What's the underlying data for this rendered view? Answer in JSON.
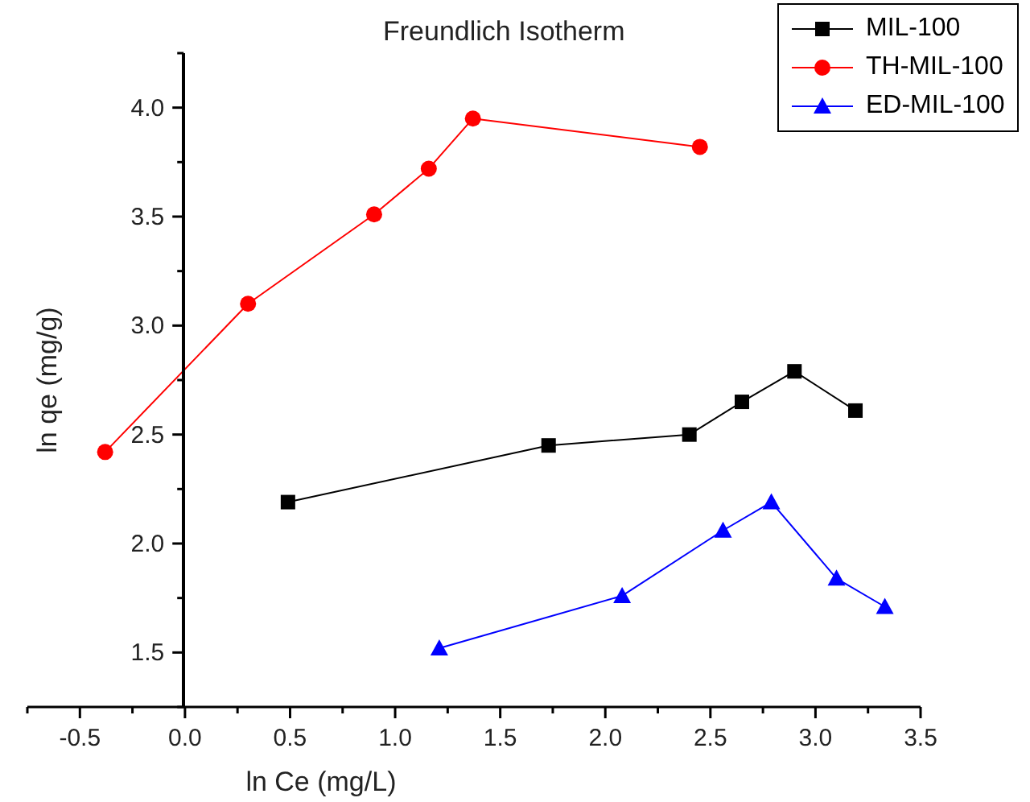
{
  "chart_data": {
    "type": "line",
    "title": "Freundlich Isotherm",
    "xlabel": "ln Ce (mg/L)",
    "ylabel": "ln qe (mg/g)",
    "xlim": [
      -0.75,
      3.5
    ],
    "ylim": [
      1.25,
      4.25
    ],
    "xticks": [
      {
        "value": -0.75,
        "label": null
      },
      {
        "value": -0.5,
        "label": "-0.5"
      },
      {
        "value": -0.25,
        "label": null
      },
      {
        "value": 0,
        "label": "0.0"
      },
      {
        "value": 0.25,
        "label": null
      },
      {
        "value": 0.5,
        "label": "0.5"
      },
      {
        "value": 0.75,
        "label": null
      },
      {
        "value": 1,
        "label": "1.0"
      },
      {
        "value": 1.25,
        "label": null
      },
      {
        "value": 1.5,
        "label": "1.5"
      },
      {
        "value": 1.75,
        "label": null
      },
      {
        "value": 2,
        "label": "2.0"
      },
      {
        "value": 2.25,
        "label": null
      },
      {
        "value": 2.5,
        "label": "2.5"
      },
      {
        "value": 2.75,
        "label": null
      },
      {
        "value": 3,
        "label": "3.0"
      },
      {
        "value": 3.25,
        "label": null
      },
      {
        "value": 3.5,
        "label": "3.5"
      }
    ],
    "yticks": [
      {
        "value": 1.25,
        "label": null
      },
      {
        "value": 1.5,
        "label": "1.5"
      },
      {
        "value": 1.75,
        "label": null
      },
      {
        "value": 2,
        "label": "2.0"
      },
      {
        "value": 2.25,
        "label": null
      },
      {
        "value": 2.5,
        "label": "2.5"
      },
      {
        "value": 2.75,
        "label": null
      },
      {
        "value": 3,
        "label": "3.0"
      },
      {
        "value": 3.25,
        "label": null
      },
      {
        "value": 3.5,
        "label": "3.5"
      },
      {
        "value": 3.75,
        "label": null
      },
      {
        "value": 4,
        "label": "4.0"
      },
      {
        "value": 4.25,
        "label": null
      }
    ],
    "grid": false,
    "legend": "top right",
    "series": [
      {
        "name": "MIL-100",
        "color": "#000000",
        "marker": "square",
        "x": [
          0.49,
          1.73,
          2.4,
          2.65,
          2.9,
          3.19
        ],
        "values": [
          2.19,
          2.45,
          2.5,
          2.65,
          2.79,
          2.61
        ]
      },
      {
        "name": "TH-MIL-100",
        "color": "#ff0000",
        "marker": "circle",
        "x": [
          -0.38,
          0.3,
          0.9,
          1.16,
          1.37,
          2.45
        ],
        "values": [
          2.42,
          3.1,
          3.51,
          3.72,
          3.95,
          3.82
        ]
      },
      {
        "name": "ED-MIL-100",
        "color": "#0000ff",
        "marker": "triangle",
        "x": [
          1.21,
          2.08,
          2.56,
          2.79,
          3.1,
          3.33
        ],
        "values": [
          1.52,
          1.76,
          2.06,
          2.19,
          1.84,
          1.71
        ]
      }
    ]
  }
}
